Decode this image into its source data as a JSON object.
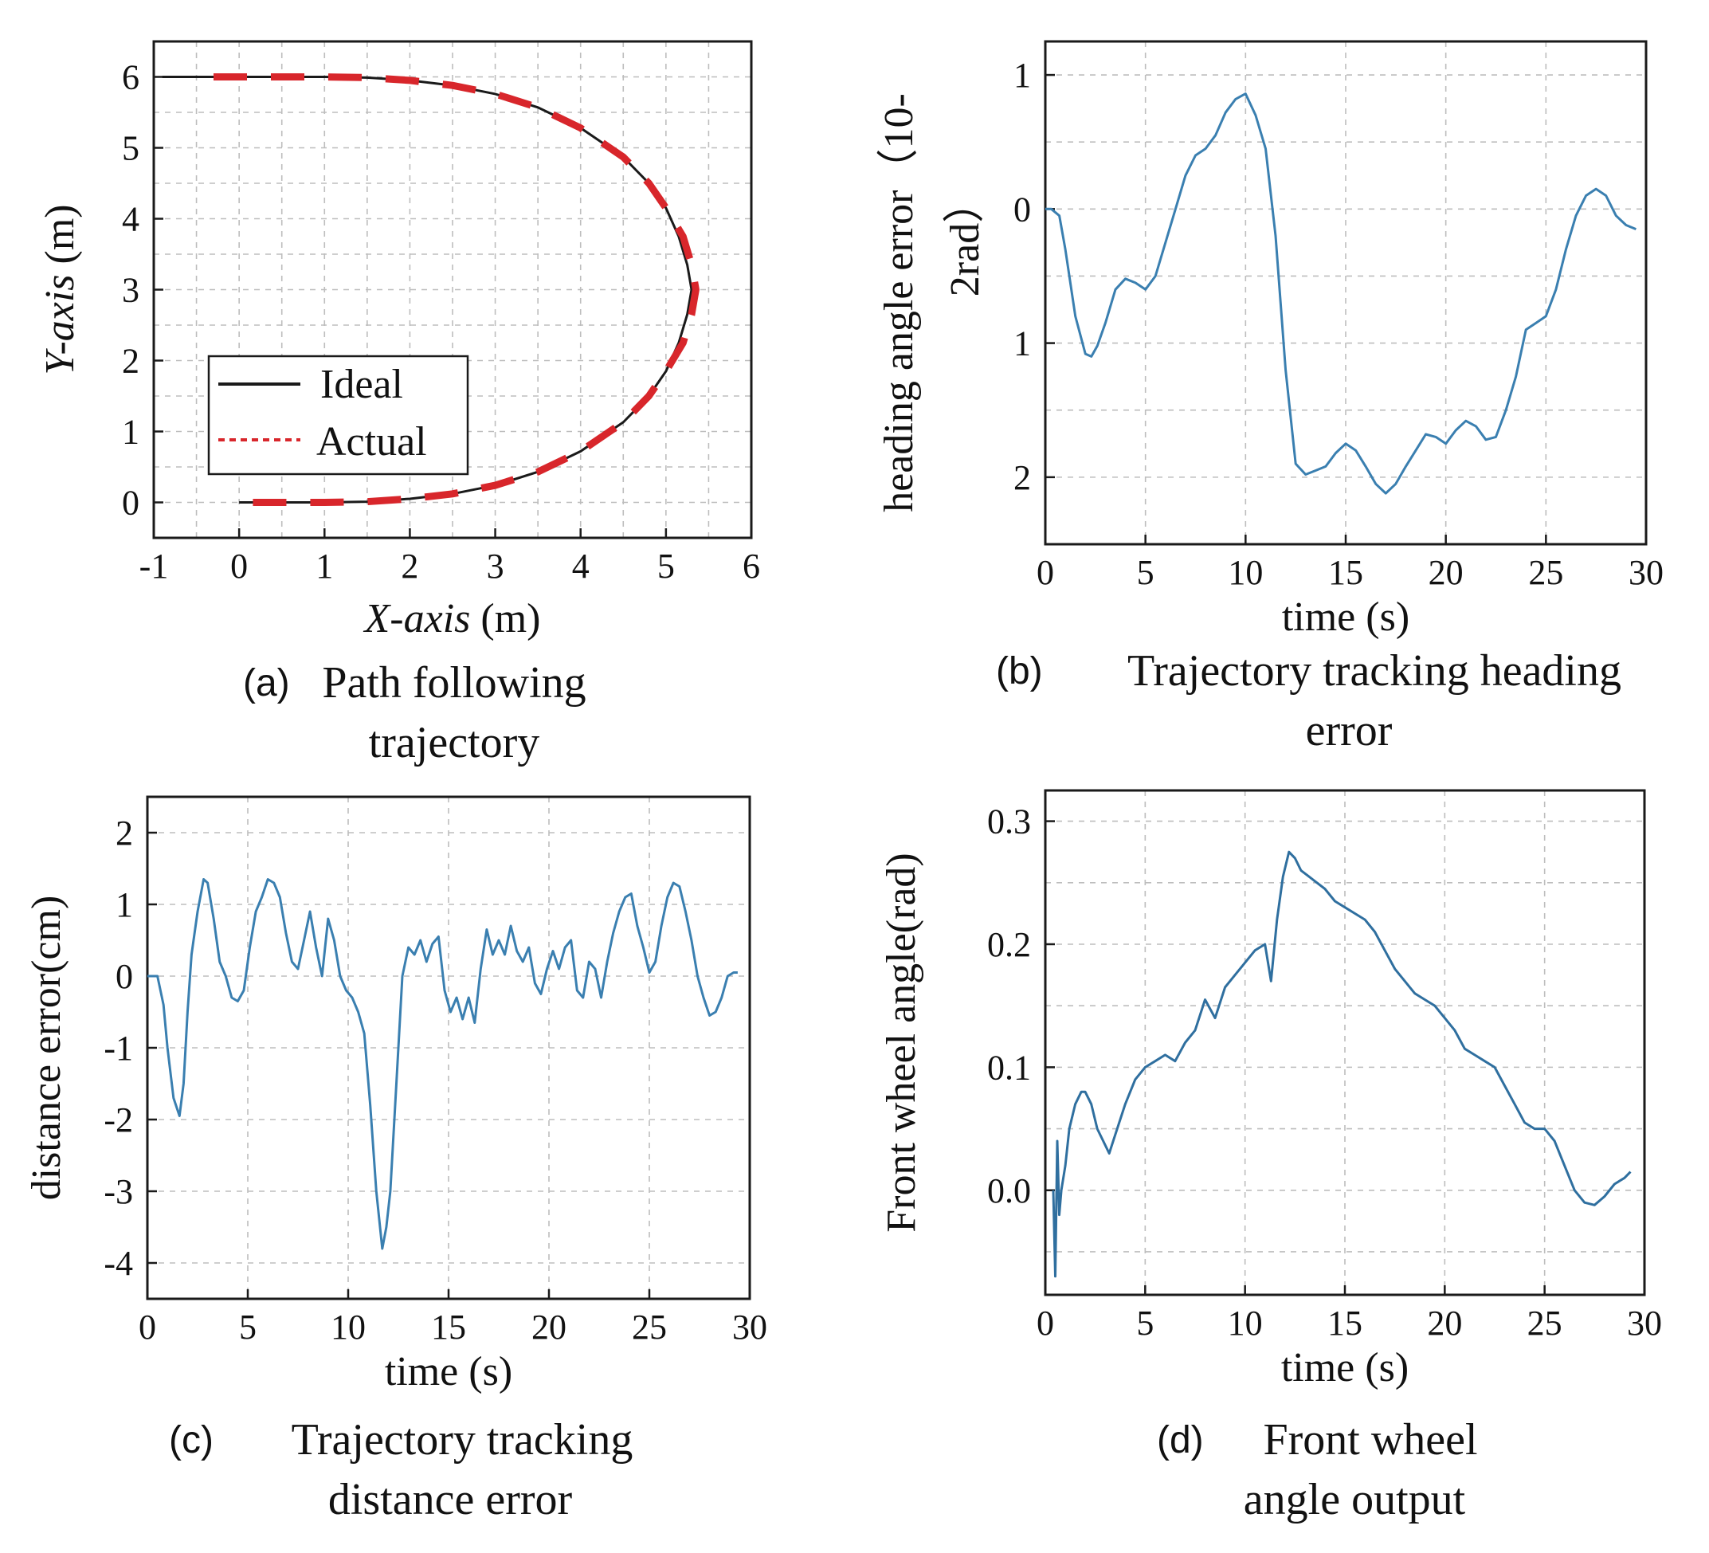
{
  "chart_data": [
    {
      "id": "a",
      "type": "line",
      "caption_letter": "(a)",
      "caption_lines": [
        "Path following",
        "trajectory"
      ],
      "xlabel_italic": "X-axis",
      "xlabel_unit": " (m)",
      "ylabel_italic": "Y-axis",
      "ylabel_unit": " (m)",
      "xlim": [
        -1,
        6
      ],
      "ylim": [
        -0.5,
        6.5
      ],
      "xticks": [
        -1,
        0,
        1,
        2,
        3,
        4,
        5,
        6
      ],
      "yticks": [
        0,
        1,
        2,
        3,
        4,
        5,
        6
      ],
      "legend": [
        "Ideal",
        "Actual"
      ],
      "legend_position": "lower-left",
      "ideal_color": "#1a1a1a",
      "actual_color": "#d8262b",
      "series": [
        {
          "name": "Ideal",
          "style": "solid",
          "x": [
            -0.9,
            0.0,
            0.5,
            1.0,
            1.5,
            2.0,
            2.5,
            3.0,
            3.5,
            4.0,
            4.5,
            4.8,
            5.0,
            5.15,
            5.25,
            5.3,
            5.25,
            5.15,
            5.0,
            4.8,
            4.5,
            4.0,
            3.5,
            3.0,
            2.5,
            2.0,
            1.5,
            1.0,
            0.5,
            0.0
          ],
          "y": [
            6.0,
            6.0,
            6.0,
            6.0,
            5.99,
            5.95,
            5.88,
            5.76,
            5.57,
            5.28,
            4.87,
            4.5,
            4.15,
            3.75,
            3.35,
            3.0,
            2.65,
            2.25,
            1.85,
            1.5,
            1.13,
            0.72,
            0.43,
            0.24,
            0.12,
            0.05,
            0.01,
            0.0,
            0.0,
            0.0
          ]
        },
        {
          "name": "Actual",
          "style": "dashed",
          "x": [
            -0.3,
            0.0,
            0.5,
            1.0,
            1.5,
            2.0,
            2.5,
            3.0,
            3.5,
            4.0,
            4.5,
            4.8,
            5.0,
            5.2,
            5.3,
            5.35,
            5.3,
            5.2,
            5.0,
            4.8,
            4.5,
            4.0,
            3.5,
            3.0,
            2.5,
            2.0,
            1.5,
            1.0,
            0.5,
            0.0
          ],
          "y": [
            6.0,
            6.0,
            6.0,
            6.0,
            5.99,
            5.95,
            5.88,
            5.76,
            5.57,
            5.28,
            4.87,
            4.5,
            4.15,
            3.75,
            3.35,
            3.0,
            2.65,
            2.25,
            1.85,
            1.5,
            1.13,
            0.72,
            0.43,
            0.24,
            0.12,
            0.05,
            0.01,
            0.0,
            0.0,
            0.0
          ]
        }
      ]
    },
    {
      "id": "b",
      "type": "line",
      "caption_letter": "(b)",
      "caption_lines": [
        "Trajectory tracking heading",
        "error"
      ],
      "xlabel": "time (s)",
      "ylabel_lines": [
        "heading angle error（10-",
        "2rad）"
      ],
      "xlim": [
        0,
        30
      ],
      "ylim": [
        -2.5,
        1.25
      ],
      "xticks": [
        0,
        5,
        10,
        15,
        20,
        25,
        30
      ],
      "yticks": [
        1,
        0,
        -1,
        -2
      ],
      "ytick_labels": [
        "1",
        "0",
        "1",
        "2"
      ],
      "line_color": "#3a7fb0",
      "series": [
        {
          "name": "heading error",
          "x": [
            0.0,
            0.3,
            0.7,
            1.0,
            1.5,
            2.0,
            2.3,
            2.6,
            3.0,
            3.5,
            4.0,
            4.5,
            5.0,
            5.5,
            6.0,
            6.5,
            7.0,
            7.5,
            8.0,
            8.5,
            9.0,
            9.5,
            10.0,
            10.5,
            11.0,
            11.5,
            12.0,
            12.5,
            13.0,
            13.5,
            14.0,
            14.5,
            15.0,
            15.5,
            16.0,
            16.5,
            17.0,
            17.5,
            18.0,
            18.5,
            19.0,
            19.5,
            20.0,
            20.5,
            21.0,
            21.5,
            22.0,
            22.5,
            23.0,
            23.5,
            24.0,
            24.5,
            25.0,
            25.5,
            26.0,
            26.5,
            27.0,
            27.5,
            28.0,
            28.5,
            29.0,
            29.5
          ],
          "y": [
            0.0,
            0.0,
            -0.05,
            -0.3,
            -0.8,
            -1.08,
            -1.1,
            -1.02,
            -0.85,
            -0.6,
            -0.52,
            -0.55,
            -0.6,
            -0.5,
            -0.25,
            0.0,
            0.25,
            0.4,
            0.45,
            0.55,
            0.72,
            0.82,
            0.86,
            0.7,
            0.45,
            -0.2,
            -1.2,
            -1.9,
            -1.98,
            -1.95,
            -1.92,
            -1.82,
            -1.75,
            -1.8,
            -1.92,
            -2.05,
            -2.12,
            -2.05,
            -1.92,
            -1.8,
            -1.68,
            -1.7,
            -1.75,
            -1.65,
            -1.58,
            -1.62,
            -1.72,
            -1.7,
            -1.5,
            -1.25,
            -0.9,
            -0.85,
            -0.8,
            -0.6,
            -0.3,
            -0.05,
            0.1,
            0.15,
            0.1,
            -0.05,
            -0.12,
            -0.15
          ]
        }
      ]
    },
    {
      "id": "c",
      "type": "line",
      "caption_letter": "(c)",
      "caption_lines": [
        "Trajectory tracking",
        "distance error"
      ],
      "xlabel": "time (s)",
      "ylabel": "distance error(cm)",
      "xlim": [
        0,
        30
      ],
      "ylim": [
        -4.5,
        2.5
      ],
      "xticks": [
        0,
        5,
        10,
        15,
        20,
        25,
        30
      ],
      "yticks": [
        2,
        1,
        0,
        -1,
        -2,
        -3,
        -4
      ],
      "line_color": "#3a7fb0",
      "series": [
        {
          "name": "distance error",
          "x": [
            0.0,
            0.5,
            0.8,
            1.0,
            1.3,
            1.6,
            1.8,
            2.0,
            2.2,
            2.5,
            2.8,
            3.0,
            3.3,
            3.6,
            3.9,
            4.2,
            4.5,
            4.8,
            5.1,
            5.4,
            5.7,
            6.0,
            6.3,
            6.6,
            6.9,
            7.2,
            7.5,
            7.8,
            8.1,
            8.4,
            8.7,
            9.0,
            9.3,
            9.6,
            9.9,
            10.2,
            10.5,
            10.8,
            11.1,
            11.4,
            11.7,
            11.9,
            12.1,
            12.4,
            12.7,
            13.0,
            13.3,
            13.6,
            13.9,
            14.2,
            14.5,
            14.8,
            15.1,
            15.4,
            15.7,
            16.0,
            16.3,
            16.6,
            16.9,
            17.2,
            17.5,
            17.8,
            18.1,
            18.4,
            18.7,
            19.0,
            19.3,
            19.6,
            19.9,
            20.2,
            20.5,
            20.8,
            21.1,
            21.4,
            21.7,
            22.0,
            22.3,
            22.6,
            22.9,
            23.2,
            23.5,
            23.8,
            24.1,
            24.4,
            24.7,
            25.0,
            25.3,
            25.6,
            25.9,
            26.2,
            26.5,
            26.8,
            27.1,
            27.4,
            27.7,
            28.0,
            28.3,
            28.6,
            28.9,
            29.2,
            29.4
          ],
          "y": [
            0.0,
            0.0,
            -0.4,
            -1.0,
            -1.7,
            -1.95,
            -1.5,
            -0.5,
            0.3,
            0.9,
            1.35,
            1.3,
            0.8,
            0.2,
            0.0,
            -0.3,
            -0.35,
            -0.2,
            0.4,
            0.9,
            1.1,
            1.35,
            1.3,
            1.1,
            0.6,
            0.2,
            0.1,
            0.5,
            0.9,
            0.4,
            0.0,
            0.8,
            0.5,
            0.0,
            -0.2,
            -0.3,
            -0.5,
            -0.8,
            -1.8,
            -3.0,
            -3.8,
            -3.5,
            -3.0,
            -1.5,
            0.0,
            0.4,
            0.3,
            0.5,
            0.2,
            0.45,
            0.55,
            -0.2,
            -0.5,
            -0.3,
            -0.6,
            -0.3,
            -0.65,
            0.1,
            0.65,
            0.3,
            0.5,
            0.3,
            0.7,
            0.35,
            0.2,
            0.4,
            -0.1,
            -0.25,
            0.1,
            0.35,
            0.1,
            0.4,
            0.5,
            -0.2,
            -0.3,
            0.2,
            0.1,
            -0.3,
            0.2,
            0.6,
            0.9,
            1.1,
            1.15,
            0.7,
            0.4,
            0.05,
            0.2,
            0.7,
            1.1,
            1.3,
            1.25,
            0.9,
            0.5,
            0.0,
            -0.3,
            -0.55,
            -0.5,
            -0.3,
            0.0,
            0.05,
            0.05
          ]
        }
      ]
    },
    {
      "id": "d",
      "type": "line",
      "caption_letter": "(d)",
      "caption_lines": [
        "Front wheel",
        "angle output"
      ],
      "xlabel": "time (s)",
      "ylabel": "Front wheel angle(rad)",
      "xlim": [
        0,
        30
      ],
      "ylim": [
        -0.085,
        0.325
      ],
      "xticks": [
        0,
        5,
        10,
        15,
        20,
        25,
        30
      ],
      "yticks": [
        0.3,
        0.2,
        0.1,
        0.0
      ],
      "ytick_labels": [
        "0.3",
        "0.2",
        "0.1",
        "0.0"
      ],
      "line_color": "#2f6f9f",
      "series": [
        {
          "name": "front wheel angle",
          "x": [
            0.4,
            0.5,
            0.6,
            0.7,
            0.8,
            1.0,
            1.2,
            1.5,
            1.8,
            2.0,
            2.3,
            2.6,
            2.9,
            3.2,
            3.5,
            4.0,
            4.5,
            5.0,
            5.5,
            6.0,
            6.5,
            7.0,
            7.5,
            8.0,
            8.5,
            9.0,
            9.5,
            10.0,
            10.5,
            11.0,
            11.3,
            11.6,
            11.9,
            12.2,
            12.5,
            12.8,
            13.2,
            13.6,
            14.0,
            14.5,
            15.0,
            15.5,
            16.0,
            16.5,
            17.0,
            17.5,
            18.0,
            18.5,
            19.0,
            19.5,
            20.0,
            20.5,
            21.0,
            21.5,
            22.0,
            22.5,
            23.0,
            23.5,
            24.0,
            24.5,
            25.0,
            25.5,
            26.0,
            26.5,
            27.0,
            27.5,
            28.0,
            28.5,
            29.0,
            29.3
          ],
          "y": [
            0.0,
            -0.07,
            0.04,
            -0.02,
            0.0,
            0.02,
            0.05,
            0.07,
            0.08,
            0.08,
            0.07,
            0.05,
            0.04,
            0.03,
            0.045,
            0.07,
            0.09,
            0.1,
            0.105,
            0.11,
            0.105,
            0.12,
            0.13,
            0.155,
            0.14,
            0.165,
            0.175,
            0.185,
            0.195,
            0.2,
            0.17,
            0.22,
            0.255,
            0.275,
            0.27,
            0.26,
            0.255,
            0.25,
            0.245,
            0.235,
            0.23,
            0.225,
            0.22,
            0.21,
            0.195,
            0.18,
            0.17,
            0.16,
            0.155,
            0.15,
            0.14,
            0.13,
            0.115,
            0.11,
            0.105,
            0.1,
            0.085,
            0.07,
            0.055,
            0.05,
            0.05,
            0.04,
            0.02,
            0.0,
            -0.01,
            -0.012,
            -0.005,
            0.005,
            0.01,
            0.015
          ]
        }
      ]
    }
  ]
}
